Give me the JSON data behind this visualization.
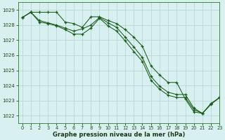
{
  "background_color": "#d8f0f0",
  "grid_color": "#b8d8d8",
  "line_color": "#1a5c1a",
  "xlabel": "Graphe pression niveau de la mer (hPa)",
  "xlim": [
    -0.5,
    23
  ],
  "ylim": [
    1021.5,
    1029.5
  ],
  "yticks": [
    1022,
    1023,
    1024,
    1025,
    1026,
    1027,
    1028,
    1029
  ],
  "xticks": [
    0,
    1,
    2,
    3,
    4,
    5,
    6,
    7,
    8,
    9,
    10,
    11,
    12,
    13,
    14,
    15,
    16,
    17,
    18,
    19,
    20,
    21,
    22,
    23
  ],
  "series": [
    {
      "x": [
        0,
        1,
        2,
        3,
        4,
        5,
        6,
        7,
        8,
        9,
        10,
        11,
        12,
        13,
        14,
        15,
        16,
        17,
        18,
        19,
        20,
        21,
        22,
        23
      ],
      "y": [
        1028.5,
        1028.85,
        1028.85,
        1028.85,
        1028.85,
        1028.2,
        1028.1,
        1027.85,
        1028.55,
        1028.55,
        1028.3,
        1028.1,
        1027.7,
        1027.2,
        1026.6,
        1025.3,
        1024.7,
        1024.2,
        1024.2,
        1023.1,
        1022.25,
        1022.15,
        1022.8,
        1023.2
      ]
    },
    {
      "x": [
        0,
        1,
        2,
        3,
        4,
        5,
        6,
        7,
        8,
        9,
        10,
        11,
        12,
        13,
        14,
        15,
        16,
        17,
        18,
        19,
        20,
        21,
        22,
        23
      ],
      "y": [
        1028.5,
        1028.85,
        1028.3,
        1028.15,
        1028.0,
        1027.8,
        1027.6,
        1027.75,
        1028.0,
        1028.5,
        1028.15,
        1027.85,
        1027.2,
        1026.55,
        1025.85,
        1024.6,
        1023.95,
        1023.55,
        1023.4,
        1023.4,
        1022.5,
        1022.15,
        1022.8,
        1023.2
      ]
    },
    {
      "x": [
        0,
        1,
        2,
        3,
        4,
        5,
        6,
        7,
        8,
        9,
        10,
        11,
        12,
        13,
        14,
        15,
        16,
        17,
        18,
        19,
        20,
        21,
        22,
        23
      ],
      "y": [
        1028.5,
        1028.85,
        1028.2,
        1028.1,
        1027.95,
        1027.7,
        1027.4,
        1027.4,
        1027.8,
        1028.45,
        1027.95,
        1027.6,
        1026.95,
        1026.25,
        1025.6,
        1024.35,
        1023.75,
        1023.35,
        1023.2,
        1023.2,
        1022.4,
        1022.15,
        1022.75,
        1023.2
      ]
    }
  ]
}
